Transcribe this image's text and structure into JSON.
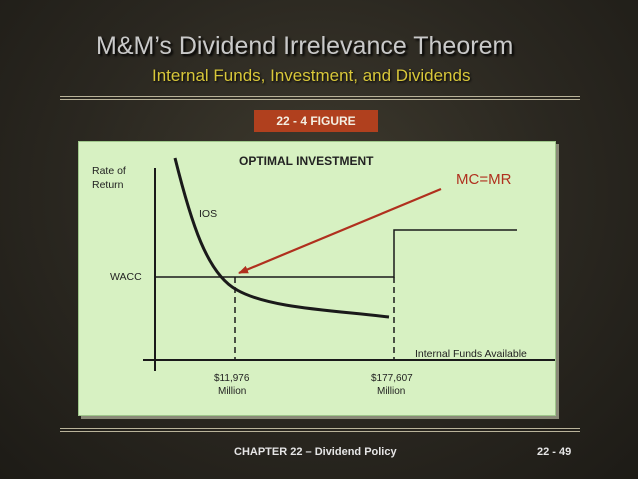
{
  "slide": {
    "title": "M&M’s Dividend Irrelevance Theorem",
    "subtitle": "Internal Funds, Investment, and Dividends",
    "figure_badge": "22 - 4   FIGURE"
  },
  "diagram": {
    "title": "OPTIMAL INVESTMENT",
    "y_axis_label_line1": "Rate of",
    "y_axis_label_line2": "Return",
    "ios_label": "IOS",
    "wacc_label": "WACC",
    "mcmr_label": "MC=MR",
    "x_axis_label": "Internal Funds Available",
    "marker1_value": "$11,976",
    "marker1_unit": "Million",
    "marker2_value": "$177,607",
    "marker2_unit": "Million"
  },
  "footer": {
    "chapter": "CHAPTER 22 – Dividend Policy",
    "page": "22 - 49"
  },
  "colors": {
    "badge": "#b0401e",
    "arrow": "#b0301e",
    "mcmr_text": "#b0301e",
    "panel": "#d7f1c2",
    "title": "#c9c9c9",
    "subtitle": "#d8c73a"
  }
}
